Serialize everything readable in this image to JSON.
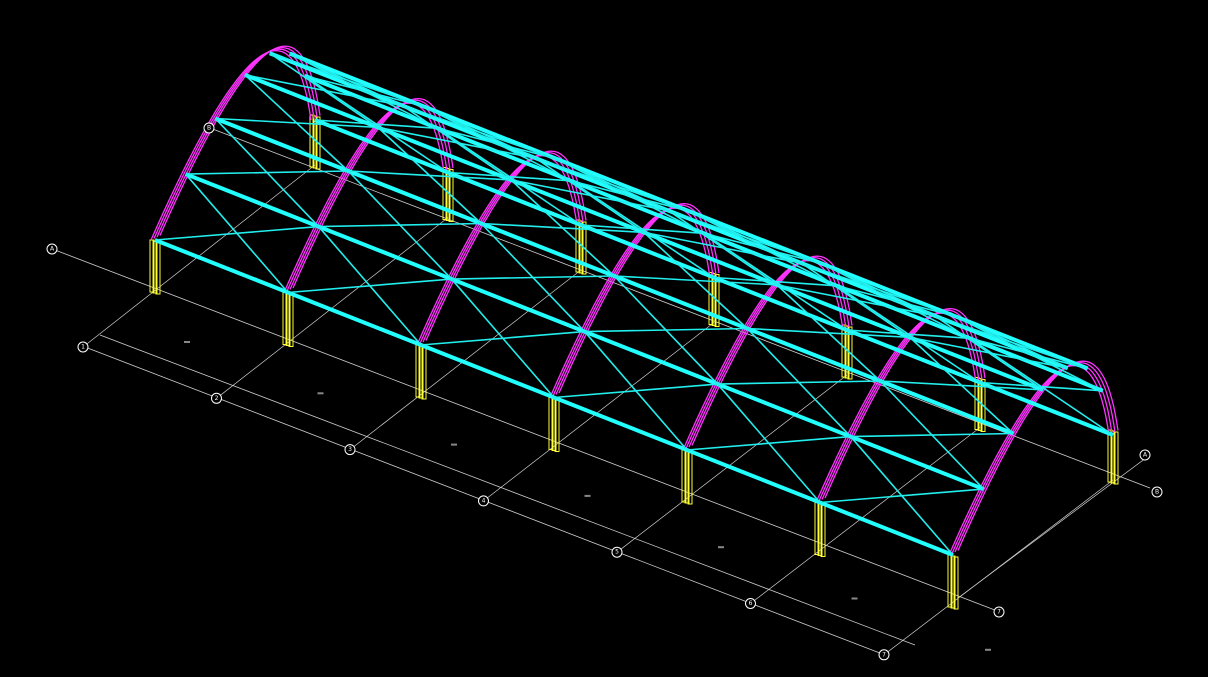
{
  "grid_bubbles": {
    "front": [
      "1",
      "2",
      "3",
      "4",
      "5",
      "6",
      "7"
    ],
    "left": [
      "A",
      "B"
    ],
    "right": [
      "A",
      "B"
    ],
    "corner": "7"
  }
}
